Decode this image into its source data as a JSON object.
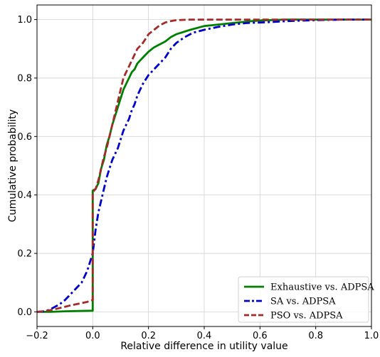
{
  "chart_data": {
    "type": "line",
    "xlabel": "Relative difference in utility value",
    "ylabel": "Cumulative probability",
    "xlim": [
      -0.2,
      1.0
    ],
    "ylim": [
      -0.05,
      1.05
    ],
    "x_ticks": [
      -0.2,
      0.0,
      0.2,
      0.4,
      0.6,
      0.8,
      1.0
    ],
    "x_tick_labels": [
      "−0.2",
      "0.0",
      "0.2",
      "0.4",
      "0.6",
      "0.8",
      "1.0"
    ],
    "y_ticks": [
      0.0,
      0.2,
      0.4,
      0.6,
      0.8,
      1.0
    ],
    "y_tick_labels": [
      "0.0",
      "0.2",
      "0.4",
      "0.6",
      "0.8",
      "1.0"
    ],
    "grid": true,
    "legend_position": "bottom-right",
    "series": [
      {
        "name": "Exhaustive vs. ADPSA",
        "color": "#008000",
        "dash": "solid",
        "x": [
          -0.2,
          -0.15,
          -0.1,
          -0.05,
          -0.002,
          0.0,
          0.0,
          0.01,
          0.02,
          0.03,
          0.04,
          0.05,
          0.06,
          0.07,
          0.08,
          0.09,
          0.1,
          0.11,
          0.12,
          0.13,
          0.14,
          0.15,
          0.16,
          0.17,
          0.18,
          0.2,
          0.22,
          0.24,
          0.26,
          0.28,
          0.3,
          0.35,
          0.4,
          0.45,
          0.5,
          0.55,
          0.6,
          0.7,
          0.8,
          0.9,
          1.0
        ],
        "y": [
          0.0,
          0.0,
          0.002,
          0.003,
          0.004,
          0.004,
          0.415,
          0.42,
          0.44,
          0.49,
          0.52,
          0.57,
          0.6,
          0.64,
          0.67,
          0.7,
          0.73,
          0.76,
          0.78,
          0.8,
          0.82,
          0.83,
          0.85,
          0.86,
          0.87,
          0.89,
          0.905,
          0.915,
          0.925,
          0.94,
          0.95,
          0.965,
          0.978,
          0.983,
          0.988,
          0.993,
          0.997,
          1.0,
          1.0,
          1.0,
          1.0
        ]
      },
      {
        "name": "SA vs. ADPSA",
        "color": "#0000cd",
        "dash": "dashdot",
        "x": [
          -0.2,
          -0.17,
          -0.15,
          -0.12,
          -0.1,
          -0.08,
          -0.06,
          -0.04,
          -0.02,
          0.0,
          0.01,
          0.02,
          0.03,
          0.04,
          0.05,
          0.06,
          0.07,
          0.08,
          0.09,
          0.1,
          0.11,
          0.12,
          0.13,
          0.14,
          0.15,
          0.16,
          0.17,
          0.18,
          0.2,
          0.22,
          0.24,
          0.26,
          0.28,
          0.3,
          0.33,
          0.36,
          0.4,
          0.45,
          0.5,
          0.55,
          0.6,
          0.65,
          0.7,
          0.8,
          0.9,
          1.0
        ],
        "y": [
          0.0,
          0.002,
          0.01,
          0.025,
          0.04,
          0.06,
          0.08,
          0.1,
          0.14,
          0.2,
          0.28,
          0.34,
          0.38,
          0.42,
          0.46,
          0.49,
          0.52,
          0.54,
          0.56,
          0.59,
          0.62,
          0.64,
          0.66,
          0.69,
          0.71,
          0.74,
          0.76,
          0.78,
          0.81,
          0.83,
          0.85,
          0.87,
          0.9,
          0.92,
          0.94,
          0.955,
          0.965,
          0.975,
          0.983,
          0.988,
          0.99,
          0.992,
          0.995,
          0.998,
          1.0,
          1.0
        ]
      },
      {
        "name": "PSO vs. ADPSA",
        "color": "#a52a2a",
        "dash": "dashed",
        "x": [
          -0.2,
          -0.17,
          -0.14,
          -0.11,
          -0.08,
          -0.05,
          -0.02,
          -0.002,
          0.0,
          0.0,
          0.01,
          0.02,
          0.03,
          0.04,
          0.05,
          0.06,
          0.07,
          0.08,
          0.09,
          0.1,
          0.11,
          0.12,
          0.13,
          0.14,
          0.15,
          0.16,
          0.17,
          0.18,
          0.19,
          0.2,
          0.22,
          0.24,
          0.26,
          0.28,
          0.3,
          0.35,
          0.4,
          0.5,
          0.6,
          0.7,
          0.8,
          0.9,
          1.0
        ],
        "y": [
          0.0,
          0.003,
          0.008,
          0.015,
          0.022,
          0.028,
          0.034,
          0.04,
          0.04,
          0.41,
          0.42,
          0.45,
          0.49,
          0.53,
          0.56,
          0.6,
          0.64,
          0.68,
          0.72,
          0.76,
          0.8,
          0.82,
          0.84,
          0.86,
          0.88,
          0.9,
          0.91,
          0.92,
          0.935,
          0.95,
          0.965,
          0.98,
          0.99,
          0.995,
          0.998,
          1.0,
          1.0,
          1.0,
          1.0,
          1.0,
          1.0,
          1.0,
          1.0
        ]
      }
    ]
  }
}
